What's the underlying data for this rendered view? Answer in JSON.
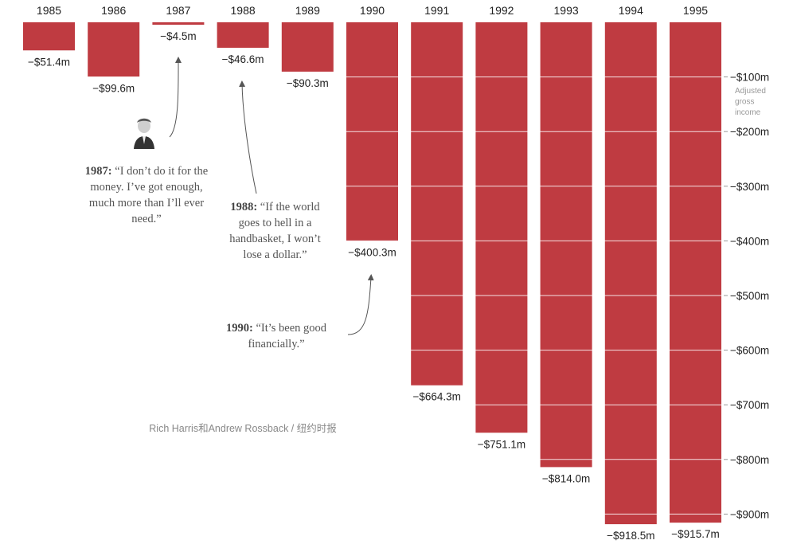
{
  "chart_data": {
    "type": "bar",
    "title": "",
    "categories": [
      "1985",
      "1986",
      "1987",
      "1988",
      "1989",
      "1990",
      "1991",
      "1992",
      "1993",
      "1994",
      "1995"
    ],
    "values": [
      -51.4,
      -99.6,
      -4.5,
      -46.6,
      -90.3,
      -400.3,
      -664.3,
      -751.1,
      -814.0,
      -918.5,
      -915.7
    ],
    "value_labels": [
      "−$51.4m",
      "−$99.6m",
      "−$4.5m",
      "−$46.6m",
      "−$90.3m",
      "−$400.3m",
      "−$664.3m",
      "−$751.1m",
      "−$814.0m",
      "−$918.5m",
      "−$915.7m"
    ],
    "ylabel": "Adjusted gross income",
    "ylabel_lines": [
      "Adjusted",
      "gross",
      "income"
    ],
    "ylim": [
      -920,
      0
    ],
    "yticks": [
      -100,
      -200,
      -300,
      -400,
      -500,
      -600,
      -700,
      -800,
      -900
    ],
    "ytick_labels": [
      "−$100m",
      "−$200m",
      "−$300m",
      "−$400m",
      "−$500m",
      "−$600m",
      "−$700m",
      "−$800m",
      "−$900m"
    ],
    "bar_color": "#bf3b41",
    "grid": true
  },
  "annotations": [
    {
      "year": "1987:",
      "text": "“I don’t do it for the money. I’ve got enough, much more than I’ll ever need.”"
    },
    {
      "year": "1988:",
      "text": "“If the world goes to hell in a handbasket, I won’t lose a dollar.”"
    },
    {
      "year": "1990:",
      "text": "“It’s been good financially.”"
    }
  ],
  "credit": "Rich Harris和Andrew Rossback / 纽约时报"
}
